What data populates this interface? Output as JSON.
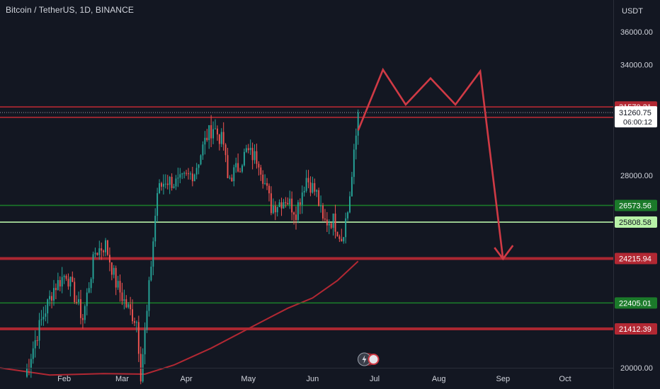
{
  "header": {
    "title": "Bitcoin / TetherUS, 1D, BINANCE",
    "currency": "USDT"
  },
  "colors": {
    "background": "#131722",
    "up": "#26a69a",
    "down": "#ef5350",
    "resistance": "#b22833",
    "support": "#1b7a2a",
    "support_bright": "#b8f2a8",
    "projection": "#d03a45",
    "ma": "#b22833",
    "text": "#d1d4dc"
  },
  "chart_data": {
    "type": "candlestick",
    "title": "Bitcoin / TetherUS, 1D, BINANCE",
    "ylabel": "USDT",
    "y_scale": "log",
    "ylim": [
      19400,
      37500
    ],
    "xlim": [
      "2023-01-01",
      "2023-10-09"
    ],
    "x_ticks": [
      {
        "label": "Feb",
        "date": "2023-02-01"
      },
      {
        "label": "Mar",
        "date": "2023-03-01"
      },
      {
        "label": "Apr",
        "date": "2023-04-01"
      },
      {
        "label": "May",
        "date": "2023-05-01"
      },
      {
        "label": "Jun",
        "date": "2023-06-01"
      },
      {
        "label": "Jul",
        "date": "2023-07-01"
      },
      {
        "label": "Aug",
        "date": "2023-08-01"
      },
      {
        "label": "Sep",
        "date": "2023-09-01"
      },
      {
        "label": "Oct",
        "date": "2023-10-01"
      }
    ],
    "y_ticks": [
      {
        "label": "36000.00",
        "value": 36000
      },
      {
        "label": "34000.00",
        "value": 34000
      },
      {
        "label": "28000.00",
        "value": 28000
      },
      {
        "label": "20000.00",
        "value": 20000
      }
    ],
    "price_path": [
      {
        "date": "2023-01-13",
        "price": 19700
      },
      {
        "date": "2023-01-20",
        "price": 21500
      },
      {
        "date": "2023-01-27",
        "price": 23000
      },
      {
        "date": "2023-02-02",
        "price": 23600
      },
      {
        "date": "2023-02-10",
        "price": 21800
      },
      {
        "date": "2023-02-16",
        "price": 24500
      },
      {
        "date": "2023-02-21",
        "price": 24800
      },
      {
        "date": "2023-02-26",
        "price": 23200
      },
      {
        "date": "2023-03-03",
        "price": 22300
      },
      {
        "date": "2023-03-08",
        "price": 21700
      },
      {
        "date": "2023-03-10",
        "price": 19800
      },
      {
        "date": "2023-03-13",
        "price": 22000
      },
      {
        "date": "2023-03-16",
        "price": 25000
      },
      {
        "date": "2023-03-18",
        "price": 27200
      },
      {
        "date": "2023-03-22",
        "price": 27800
      },
      {
        "date": "2023-03-28",
        "price": 27600
      },
      {
        "date": "2023-04-05",
        "price": 28200
      },
      {
        "date": "2023-04-11",
        "price": 30000
      },
      {
        "date": "2023-04-14",
        "price": 30500
      },
      {
        "date": "2023-04-19",
        "price": 29600
      },
      {
        "date": "2023-04-21",
        "price": 27800
      },
      {
        "date": "2023-04-26",
        "price": 28400
      },
      {
        "date": "2023-04-30",
        "price": 29200
      },
      {
        "date": "2023-05-06",
        "price": 28800
      },
      {
        "date": "2023-05-09",
        "price": 27600
      },
      {
        "date": "2023-05-12",
        "price": 26500
      },
      {
        "date": "2023-05-19",
        "price": 26900
      },
      {
        "date": "2023-05-24",
        "price": 26300
      },
      {
        "date": "2023-05-29",
        "price": 27900
      },
      {
        "date": "2023-06-03",
        "price": 27100
      },
      {
        "date": "2023-06-06",
        "price": 25800
      },
      {
        "date": "2023-06-11",
        "price": 25900
      },
      {
        "date": "2023-06-15",
        "price": 25100
      },
      {
        "date": "2023-06-18",
        "price": 26300
      },
      {
        "date": "2023-06-20",
        "price": 27900
      },
      {
        "date": "2023-06-22",
        "price": 30000
      },
      {
        "date": "2023-06-23",
        "price": 31260.75
      }
    ],
    "moving_average": [
      {
        "date": "2023-01-01",
        "value": 20000
      },
      {
        "date": "2023-01-25",
        "value": 19750
      },
      {
        "date": "2023-02-20",
        "value": 19800
      },
      {
        "date": "2023-03-12",
        "value": 19780
      },
      {
        "date": "2023-03-26",
        "value": 20100
      },
      {
        "date": "2023-04-13",
        "value": 20700
      },
      {
        "date": "2023-05-03",
        "value": 21500
      },
      {
        "date": "2023-05-20",
        "value": 22200
      },
      {
        "date": "2023-06-01",
        "value": 22600
      },
      {
        "date": "2023-06-13",
        "value": 23300
      },
      {
        "date": "2023-06-23",
        "value": 24100
      }
    ],
    "horizontal_levels": [
      {
        "value": 31570.21,
        "label": "31570.21",
        "color": "#b22833",
        "style": "line"
      },
      {
        "value": 30999.22,
        "label": "30999.22",
        "color": "#b22833",
        "style": "line"
      },
      {
        "value": 26573.56,
        "label": "26573.56",
        "color": "#1b7a2a",
        "style": "line"
      },
      {
        "value": 25808.58,
        "label": "25808.58",
        "color": "#b8f2a8",
        "style": "line"
      },
      {
        "value": 24215.94,
        "label": "24215.94",
        "color": "#b22833",
        "style": "band"
      },
      {
        "value": 22405.01,
        "label": "22405.01",
        "color": "#1b7a2a",
        "style": "line"
      },
      {
        "value": 21412.39,
        "label": "21412.39",
        "color": "#b22833",
        "style": "band"
      }
    ],
    "last_price": {
      "value": 31260.75,
      "label": "31260.75",
      "countdown": "06:00:12"
    },
    "projection": [
      {
        "date": "2023-06-23",
        "price": 30300
      },
      {
        "date": "2023-07-05",
        "price": 33700
      },
      {
        "date": "2023-07-16",
        "price": 31700
      },
      {
        "date": "2023-07-28",
        "price": 33200
      },
      {
        "date": "2023-08-09",
        "price": 31700
      },
      {
        "date": "2023-08-21",
        "price": 33600
      },
      {
        "date": "2023-09-01",
        "price": 24200
      }
    ]
  }
}
